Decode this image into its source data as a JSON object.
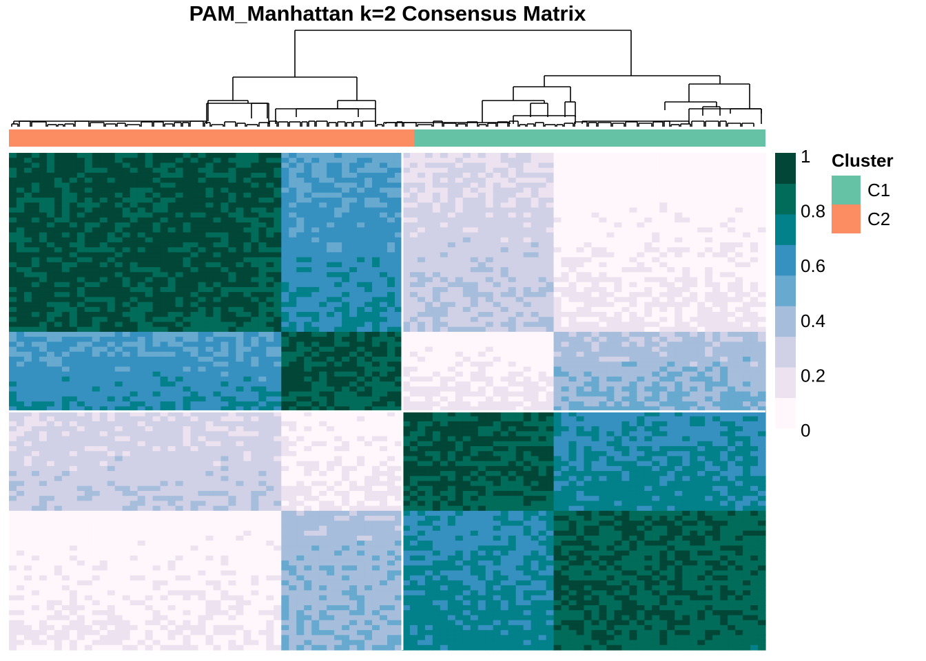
{
  "chart_data": {
    "type": "heatmap",
    "title": "PAM_Manhattan k=2 Consensus Matrix",
    "n_samples": 100,
    "cluster_order": [
      "C2",
      "C2",
      "C1",
      "C1"
    ],
    "block_sizes": [
      36,
      16,
      20,
      28
    ],
    "block_consensus_means": [
      [
        0.97,
        0.62,
        0.25,
        0.03
      ],
      [
        0.62,
        0.95,
        0.05,
        0.4
      ],
      [
        0.25,
        0.05,
        0.95,
        0.7
      ],
      [
        0.03,
        0.4,
        0.7,
        0.93
      ]
    ],
    "colorbar": {
      "ticks": [
        "1",
        "0.8",
        "0.6",
        "0.4",
        "0.2",
        "0"
      ],
      "range": [
        0,
        1
      ],
      "colors": [
        "#fff7fb",
        "#ece2f0",
        "#d0d1e6",
        "#a6bddb",
        "#67a9cf",
        "#3690c0",
        "#02818a",
        "#016c59",
        "#014636"
      ]
    },
    "annotation": {
      "name": "Cluster",
      "top_bar_order": [
        "C2",
        "C1"
      ],
      "split_fraction": 0.49,
      "legend": [
        {
          "label": "C1",
          "color": "#66c2a5"
        },
        {
          "label": "C2",
          "color": "#fc8d62"
        }
      ]
    },
    "dendrogram": "hierarchical clustering of samples, two main branches"
  }
}
